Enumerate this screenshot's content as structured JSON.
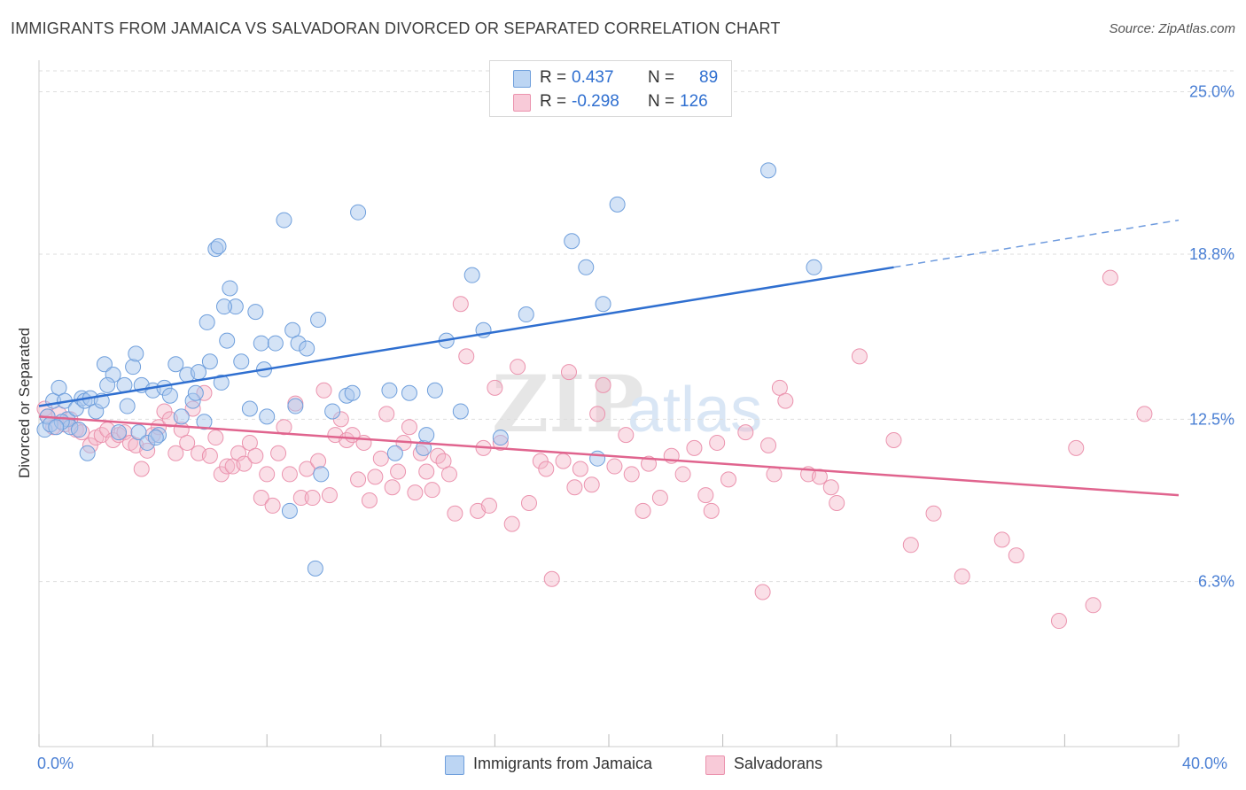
{
  "header": {
    "title": "IMMIGRANTS FROM JAMAICA VS SALVADORAN DIVORCED OR SEPARATED CORRELATION CHART",
    "source": "Source: ZipAtlas.com"
  },
  "legend": {
    "rows": [
      {
        "r_label": "R =",
        "r_value": "0.437",
        "n_label": "N =",
        "n_value": "89"
      },
      {
        "r_label": "R =",
        "r_value": "-0.298",
        "n_label": "N =",
        "n_value": "126"
      }
    ]
  },
  "bottom_legend": {
    "items": [
      {
        "label": "Immigrants from Jamaica"
      },
      {
        "label": "Salvadorans"
      }
    ]
  },
  "watermark": {
    "text_zip": "ZIP",
    "text_atlas": "atlas"
  },
  "colors": {
    "blue_fill": "#a9c8ee",
    "blue_stroke": "#6f9fdc",
    "blue_line": "#2f6fd0",
    "pink_fill": "#f4b8ca",
    "pink_stroke": "#eb93ae",
    "pink_line": "#e0648e",
    "tick_text": "#4a7fd4",
    "grid": "#dddddd"
  },
  "chart_data": {
    "type": "scatter",
    "title": "IMMIGRANTS FROM JAMAICA VS SALVADORAN DIVORCED OR SEPARATED CORRELATION CHART",
    "xlabel": "",
    "ylabel": "Divorced or Separated",
    "xlim": [
      0,
      40
    ],
    "ylim": [
      0,
      25.8
    ],
    "x_tick_labels": [
      "0.0%",
      "40.0%"
    ],
    "y_ticks": [
      6.3,
      12.5,
      18.8,
      25.0
    ],
    "y_tick_labels": [
      "6.3%",
      "12.5%",
      "18.8%",
      "25.0%"
    ],
    "grid": true,
    "legend_position": "top-center",
    "series": [
      {
        "name": "Immigrants from Jamaica",
        "color": "#a9c8ee",
        "r": 0.437,
        "n": 89,
        "trend": {
          "x": [
            0,
            30
          ],
          "y": [
            13.0,
            18.3
          ],
          "dashed_to": [
            40,
            20.1
          ]
        },
        "points": [
          [
            0.2,
            12.1
          ],
          [
            0.3,
            12.6
          ],
          [
            0.4,
            12.3
          ],
          [
            0.5,
            13.2
          ],
          [
            0.7,
            13.7
          ],
          [
            0.9,
            13.2
          ],
          [
            1.0,
            12.5
          ],
          [
            1.1,
            12.2
          ],
          [
            1.3,
            12.9
          ],
          [
            1.5,
            13.3
          ],
          [
            1.6,
            13.2
          ],
          [
            1.7,
            11.2
          ],
          [
            1.8,
            13.3
          ],
          [
            2.0,
            12.8
          ],
          [
            2.3,
            14.6
          ],
          [
            2.6,
            14.2
          ],
          [
            2.4,
            13.8
          ],
          [
            2.8,
            12.0
          ],
          [
            3.0,
            13.8
          ],
          [
            3.3,
            14.5
          ],
          [
            3.4,
            15.0
          ],
          [
            3.6,
            13.8
          ],
          [
            3.5,
            12.0
          ],
          [
            3.8,
            11.6
          ],
          [
            4.0,
            13.6
          ],
          [
            4.2,
            11.9
          ],
          [
            4.4,
            13.7
          ],
          [
            4.6,
            13.4
          ],
          [
            4.8,
            14.6
          ],
          [
            5.0,
            12.6
          ],
          [
            5.2,
            14.2
          ],
          [
            5.4,
            13.2
          ],
          [
            5.6,
            14.3
          ],
          [
            5.8,
            12.4
          ],
          [
            5.9,
            16.2
          ],
          [
            6.0,
            14.7
          ],
          [
            6.2,
            19.0
          ],
          [
            6.3,
            19.1
          ],
          [
            6.4,
            13.9
          ],
          [
            6.6,
            15.5
          ],
          [
            6.7,
            17.5
          ],
          [
            6.9,
            16.8
          ],
          [
            7.1,
            14.7
          ],
          [
            7.4,
            12.9
          ],
          [
            7.6,
            16.6
          ],
          [
            7.8,
            15.4
          ],
          [
            7.9,
            14.4
          ],
          [
            8.0,
            12.6
          ],
          [
            8.3,
            15.4
          ],
          [
            8.6,
            20.1
          ],
          [
            8.8,
            9.0
          ],
          [
            8.9,
            15.9
          ],
          [
            9.1,
            15.4
          ],
          [
            9.4,
            15.2
          ],
          [
            9.7,
            6.8
          ],
          [
            9.8,
            16.3
          ],
          [
            9.9,
            10.4
          ],
          [
            10.3,
            12.8
          ],
          [
            10.8,
            13.4
          ],
          [
            11.0,
            13.5
          ],
          [
            11.2,
            20.4
          ],
          [
            12.3,
            13.6
          ],
          [
            12.5,
            11.2
          ],
          [
            13.5,
            11.4
          ],
          [
            13.6,
            11.9
          ],
          [
            13.9,
            13.6
          ],
          [
            14.3,
            15.5
          ],
          [
            14.8,
            12.8
          ],
          [
            15.2,
            18.0
          ],
          [
            15.6,
            15.9
          ],
          [
            16.2,
            11.8
          ],
          [
            17.1,
            16.5
          ],
          [
            18.7,
            19.3
          ],
          [
            19.2,
            18.3
          ],
          [
            19.6,
            11.0
          ],
          [
            19.8,
            16.9
          ],
          [
            20.3,
            20.7
          ],
          [
            25.6,
            22.0
          ],
          [
            27.2,
            18.3
          ],
          [
            5.5,
            13.5
          ],
          [
            4.1,
            11.8
          ],
          [
            3.1,
            13.0
          ],
          [
            2.2,
            13.2
          ],
          [
            1.4,
            12.1
          ],
          [
            0.8,
            12.4
          ],
          [
            9.0,
            13.0
          ],
          [
            13.0,
            13.5
          ],
          [
            6.5,
            16.8
          ],
          [
            0.6,
            12.2
          ]
        ]
      },
      {
        "name": "Salvadorans",
        "color": "#f4b8ca",
        "r": -0.298,
        "n": 126,
        "trend": {
          "x": [
            0,
            40
          ],
          "y": [
            12.6,
            9.6
          ]
        },
        "points": [
          [
            0.2,
            12.9
          ],
          [
            0.3,
            12.6
          ],
          [
            0.5,
            12.2
          ],
          [
            0.7,
            12.7
          ],
          [
            0.9,
            12.3
          ],
          [
            1.1,
            12.5
          ],
          [
            1.3,
            12.1
          ],
          [
            1.5,
            12.0
          ],
          [
            1.8,
            11.5
          ],
          [
            2.0,
            11.8
          ],
          [
            2.2,
            11.9
          ],
          [
            2.4,
            12.1
          ],
          [
            2.6,
            11.7
          ],
          [
            2.8,
            11.9
          ],
          [
            3.0,
            12.0
          ],
          [
            3.2,
            11.6
          ],
          [
            3.4,
            11.5
          ],
          [
            3.6,
            10.6
          ],
          [
            3.8,
            11.3
          ],
          [
            4.0,
            11.9
          ],
          [
            4.2,
            12.2
          ],
          [
            4.4,
            12.8
          ],
          [
            4.6,
            12.5
          ],
          [
            4.8,
            11.2
          ],
          [
            5.0,
            12.1
          ],
          [
            5.2,
            11.6
          ],
          [
            5.4,
            12.9
          ],
          [
            5.6,
            11.2
          ],
          [
            5.8,
            13.5
          ],
          [
            6.0,
            11.1
          ],
          [
            6.2,
            11.8
          ],
          [
            6.4,
            10.4
          ],
          [
            6.6,
            10.7
          ],
          [
            6.8,
            10.7
          ],
          [
            7.0,
            11.2
          ],
          [
            7.2,
            10.8
          ],
          [
            7.4,
            11.6
          ],
          [
            7.6,
            11.1
          ],
          [
            7.8,
            9.5
          ],
          [
            8.0,
            10.4
          ],
          [
            8.2,
            9.2
          ],
          [
            8.4,
            11.2
          ],
          [
            8.6,
            12.2
          ],
          [
            8.8,
            10.4
          ],
          [
            9.0,
            13.1
          ],
          [
            9.2,
            9.5
          ],
          [
            9.4,
            10.6
          ],
          [
            9.6,
            9.5
          ],
          [
            9.8,
            10.9
          ],
          [
            10.0,
            13.6
          ],
          [
            10.2,
            9.6
          ],
          [
            10.4,
            11.9
          ],
          [
            10.6,
            12.5
          ],
          [
            10.8,
            11.7
          ],
          [
            11.0,
            11.9
          ],
          [
            11.2,
            10.2
          ],
          [
            11.4,
            11.6
          ],
          [
            11.6,
            9.4
          ],
          [
            11.8,
            10.3
          ],
          [
            12.0,
            11.0
          ],
          [
            12.2,
            12.7
          ],
          [
            12.4,
            9.9
          ],
          [
            12.6,
            10.5
          ],
          [
            12.8,
            11.6
          ],
          [
            13.0,
            12.2
          ],
          [
            13.2,
            9.7
          ],
          [
            13.4,
            11.2
          ],
          [
            13.6,
            10.5
          ],
          [
            13.8,
            9.8
          ],
          [
            14.0,
            11.1
          ],
          [
            14.2,
            10.9
          ],
          [
            14.4,
            10.4
          ],
          [
            14.6,
            8.9
          ],
          [
            14.8,
            16.9
          ],
          [
            15.0,
            14.9
          ],
          [
            15.4,
            9.0
          ],
          [
            15.6,
            11.4
          ],
          [
            15.8,
            9.2
          ],
          [
            16.0,
            13.7
          ],
          [
            16.2,
            11.6
          ],
          [
            16.6,
            8.5
          ],
          [
            16.8,
            14.5
          ],
          [
            17.2,
            9.3
          ],
          [
            17.6,
            10.9
          ],
          [
            17.8,
            10.6
          ],
          [
            18.0,
            6.4
          ],
          [
            18.4,
            10.9
          ],
          [
            18.6,
            14.3
          ],
          [
            18.8,
            9.9
          ],
          [
            19.0,
            10.6
          ],
          [
            19.4,
            10.0
          ],
          [
            19.6,
            12.7
          ],
          [
            19.8,
            13.8
          ],
          [
            20.2,
            10.7
          ],
          [
            20.6,
            11.9
          ],
          [
            20.8,
            10.4
          ],
          [
            21.2,
            9.0
          ],
          [
            21.4,
            10.8
          ],
          [
            21.8,
            9.5
          ],
          [
            22.2,
            11.1
          ],
          [
            22.6,
            10.4
          ],
          [
            23.0,
            11.4
          ],
          [
            23.4,
            9.6
          ],
          [
            23.6,
            9.0
          ],
          [
            23.8,
            11.6
          ],
          [
            24.2,
            10.2
          ],
          [
            24.8,
            12.0
          ],
          [
            25.4,
            5.9
          ],
          [
            25.6,
            11.5
          ],
          [
            25.8,
            10.4
          ],
          [
            26.0,
            13.7
          ],
          [
            26.2,
            13.2
          ],
          [
            27.0,
            10.4
          ],
          [
            27.4,
            10.3
          ],
          [
            27.8,
            9.9
          ],
          [
            28.0,
            9.3
          ],
          [
            28.8,
            14.9
          ],
          [
            30.0,
            11.7
          ],
          [
            30.6,
            7.7
          ],
          [
            31.4,
            8.9
          ],
          [
            32.4,
            6.5
          ],
          [
            33.8,
            7.9
          ],
          [
            34.3,
            7.3
          ],
          [
            35.8,
            4.8
          ],
          [
            36.4,
            11.4
          ],
          [
            37.0,
            5.4
          ],
          [
            37.6,
            17.9
          ],
          [
            38.8,
            12.7
          ]
        ]
      }
    ]
  }
}
